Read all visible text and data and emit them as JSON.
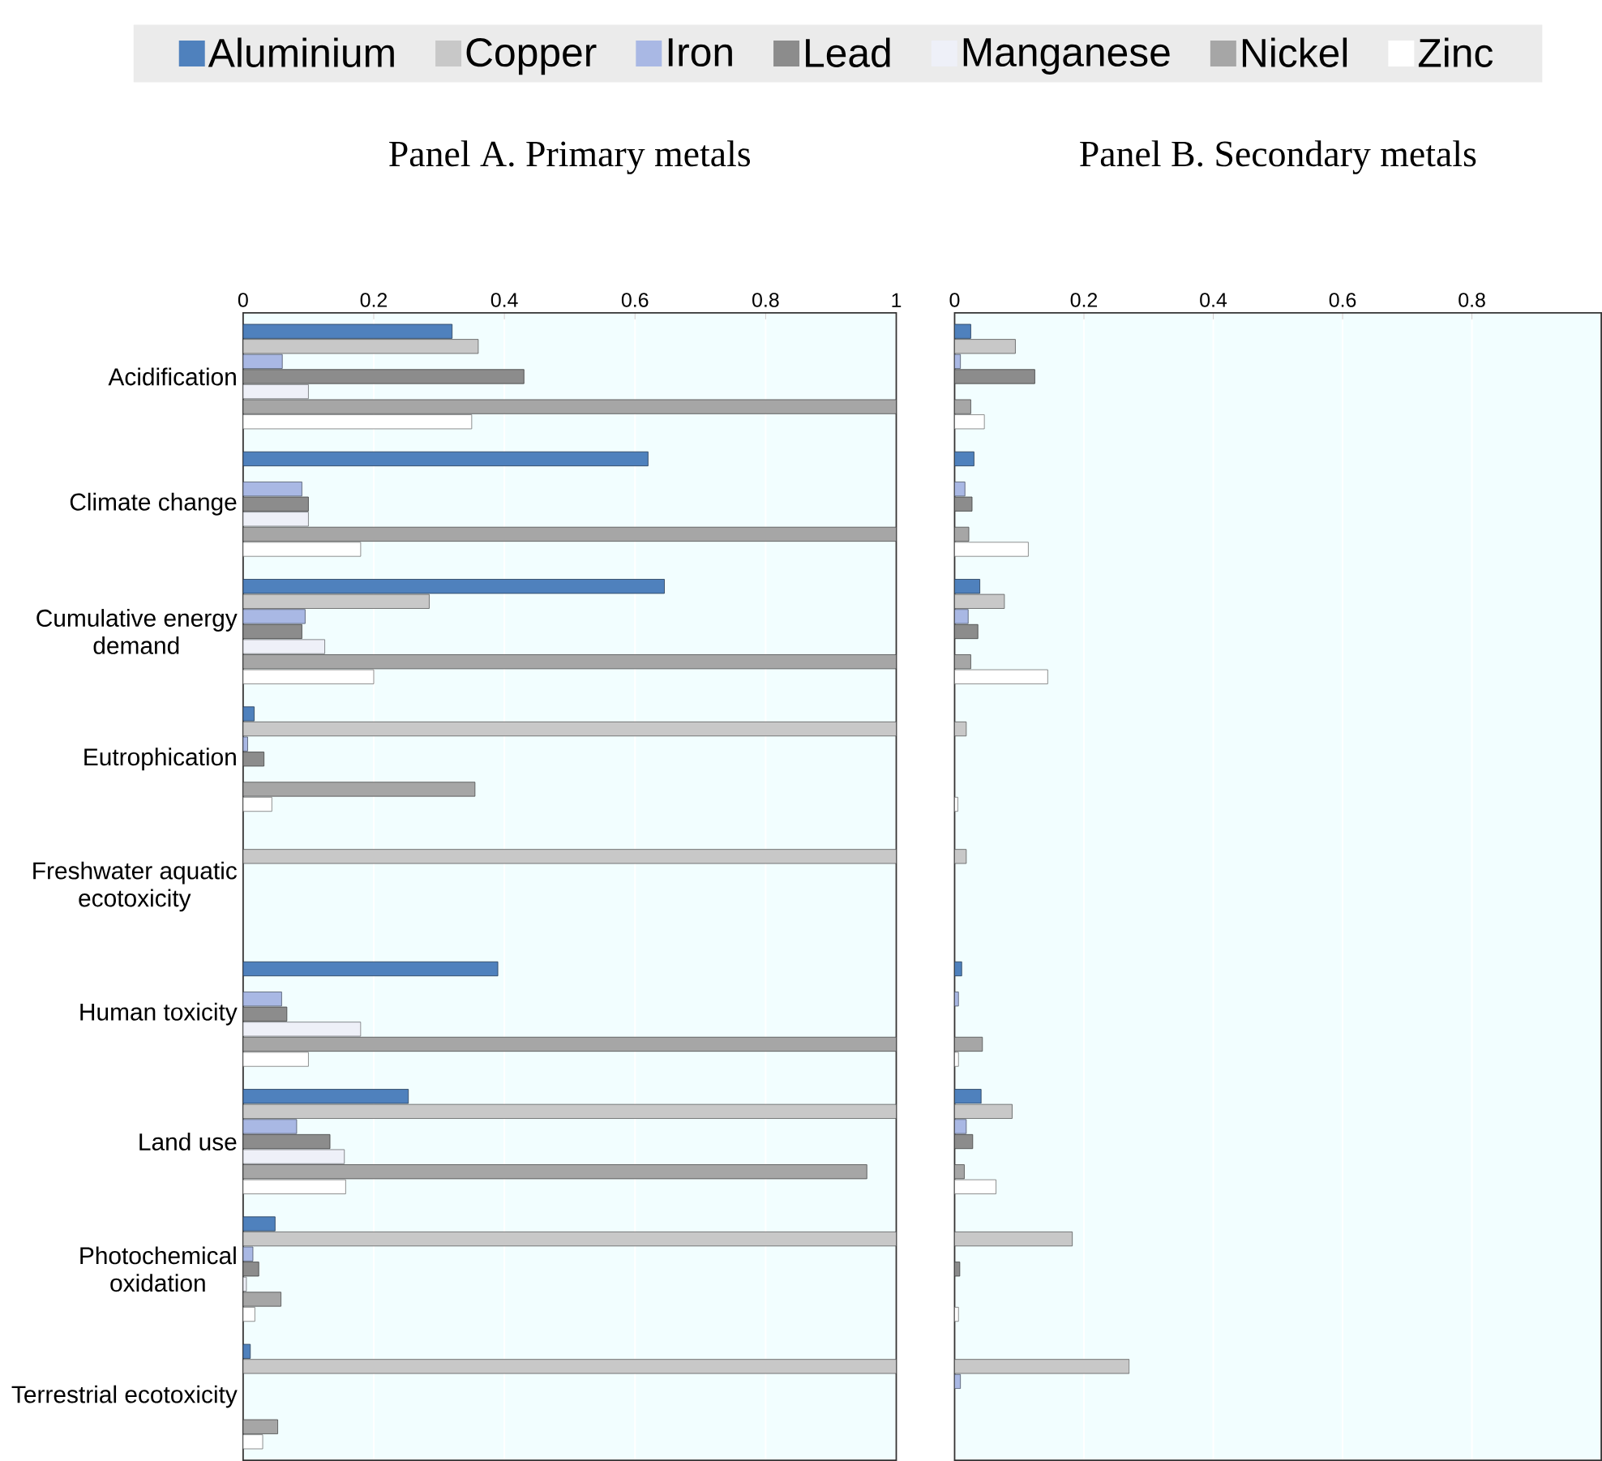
{
  "chart_data": [
    {
      "type": "bar",
      "orientation": "horizontal",
      "title": "Panel A. Primary metals",
      "categories": [
        "Acidification",
        "Climate change",
        "Cumulative energy demand",
        "Eutrophication",
        "Freshwater aquatic ecotoxicity",
        "Human toxicity",
        "Land use",
        "Photochemical oxidation",
        "Terrestrial ecotoxicity"
      ],
      "series": [
        {
          "name": "Aluminium",
          "color": "#4f81bd",
          "values": [
            0.32,
            0.62,
            0.645,
            0.017,
            null,
            0.39,
            0.253,
            0.049,
            0.011
          ]
        },
        {
          "name": "Copper",
          "color": "#c8c8c8",
          "values": [
            0.36,
            null,
            0.285,
            1,
            1,
            null,
            1,
            1,
            1
          ]
        },
        {
          "name": "Iron",
          "color": "#a9b8e4",
          "values": [
            0.06,
            0.09,
            0.095,
            0.007,
            null,
            0.059,
            0.082,
            0.015,
            null
          ]
        },
        {
          "name": "Lead",
          "color": "#8c8c8c",
          "values": [
            0.43,
            0.1,
            0.09,
            0.032,
            null,
            0.067,
            0.133,
            0.024,
            null
          ]
        },
        {
          "name": "Manganese",
          "color": "#eef0f8",
          "values": [
            0.1,
            0.1,
            0.125,
            null,
            null,
            0.18,
            0.155,
            0.005,
            null
          ]
        },
        {
          "name": "Nickel",
          "color": "#a6a6a6",
          "values": [
            1,
            1,
            1,
            0.355,
            null,
            1,
            0.955,
            0.058,
            0.053
          ]
        },
        {
          "name": "Zinc",
          "color": "#ffffff",
          "values": [
            0.35,
            0.18,
            0.2,
            0.044,
            null,
            0.1,
            0.157,
            0.018,
            0.03
          ]
        }
      ],
      "xlim": [
        0,
        1
      ],
      "xticks": [
        0,
        0.2,
        0.4,
        0.6,
        0.8,
        1
      ],
      "grid": "x",
      "legend": "top"
    },
    {
      "type": "bar",
      "orientation": "horizontal",
      "title": "Panel B. Secondary metals",
      "categories": [
        null,
        null,
        null,
        null,
        null,
        null,
        null,
        null,
        null
      ],
      "series": [
        {
          "color": "#4f81bd",
          "values": [
            0.025,
            0.03,
            0.039,
            null,
            null,
            0.011,
            0.041,
            null,
            null
          ]
        },
        {
          "color": "#c8c8c8",
          "values": [
            0.094,
            null,
            0.077,
            0.018,
            0.018,
            null,
            0.089,
            0.182,
            0.27
          ]
        },
        {
          "color": "#a9b8e4",
          "values": [
            0.009,
            0.016,
            0.021,
            null,
            null,
            0.006,
            0.018,
            null,
            0.009
          ]
        },
        {
          "color": "#8c8c8c",
          "values": [
            0.124,
            0.027,
            0.036,
            null,
            null,
            null,
            0.028,
            0.008,
            null
          ]
        },
        {
          "color": "#eef0f8",
          "values": [
            null,
            null,
            null,
            null,
            null,
            null,
            null,
            null,
            null
          ]
        },
        {
          "color": "#a6a6a6",
          "values": [
            0.025,
            0.022,
            0.025,
            null,
            null,
            0.043,
            0.015,
            null,
            null
          ]
        },
        {
          "color": "#ffffff",
          "values": [
            0.046,
            0.114,
            0.144,
            0.005,
            null,
            0.006,
            0.064,
            0.006,
            null
          ]
        }
      ],
      "xlim": [
        0,
        1
      ],
      "xticks": [
        0,
        0.2,
        0.4,
        0.6,
        0.8
      ],
      "grid": "x",
      "tick_labels": "x"
    }
  ]
}
